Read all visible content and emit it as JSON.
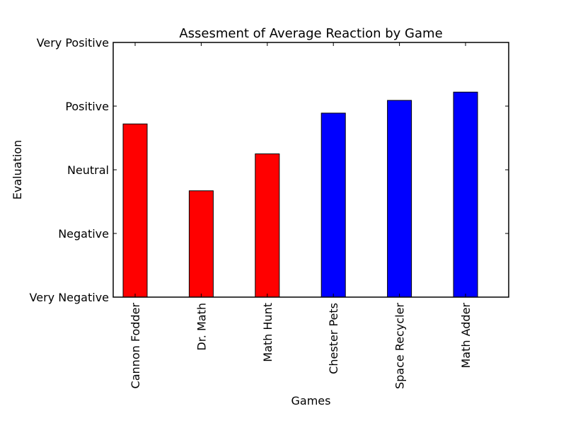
{
  "chart_data": {
    "type": "bar",
    "title": "Assesment of Average Reaction by Game",
    "xlabel": "Games",
    "ylabel": "Evaluation",
    "categories": [
      "Cannon Fodder",
      "Dr. Math",
      "Math Hunt",
      "Chester Pets",
      "Space Recycler",
      "Math Adder"
    ],
    "values": [
      2.72,
      1.67,
      2.25,
      2.89,
      3.09,
      3.22
    ],
    "bar_colors": [
      "#ff0000",
      "#ff0000",
      "#ff0000",
      "#0000ff",
      "#0000ff",
      "#0000ff"
    ],
    "ylim": [
      0,
      4
    ],
    "yticks": [
      {
        "value": 0,
        "label": "Very Negative"
      },
      {
        "value": 1,
        "label": "Negative"
      },
      {
        "value": 2,
        "label": "Neutral"
      },
      {
        "value": 3,
        "label": "Positive"
      },
      {
        "value": 4,
        "label": "Very Positive"
      }
    ],
    "grid": false,
    "legend": "none"
  }
}
